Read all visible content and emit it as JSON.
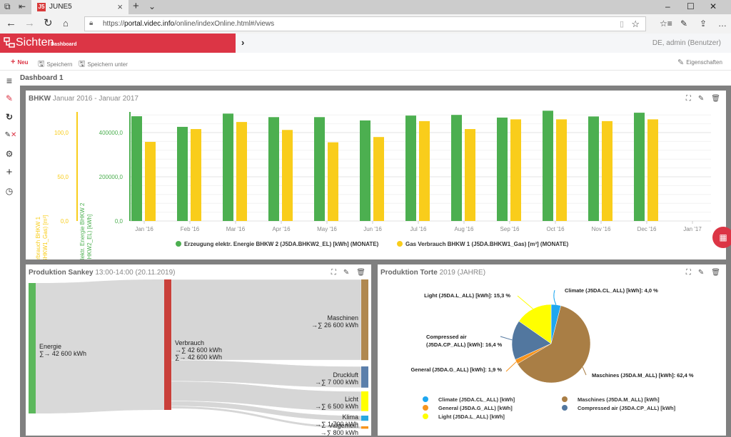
{
  "browser": {
    "tab_title": "JUNE5",
    "tab_logo": "J5",
    "url_prefix": "https://",
    "url_host": "portal.videc.info",
    "url_path": "/online/indexOnline.html#/views",
    "icons": [
      "tab-preview-icon",
      "set-aside-tabs-icon",
      "close-icon",
      "new-tab-icon",
      "tab-list-icon",
      "back-icon",
      "forward-icon",
      "refresh-icon",
      "home-icon",
      "lock-icon",
      "reading-view-icon",
      "favorite-star-icon",
      "favorites-icon",
      "pen-icon",
      "share-icon",
      "more-icon",
      "minimize-icon",
      "maximize-icon",
      "close-window-icon"
    ]
  },
  "app": {
    "brand": "Sichten",
    "brand_sub": "Dashboard",
    "user": "DE,  admin (Benutzer)",
    "accent": "#dc3545"
  },
  "toolbar": {
    "new_label": "Neu",
    "save_label": "Speichern",
    "save_as_label": "Speichern unter",
    "properties_label": "Eigenschaften"
  },
  "sidebar": {
    "items": [
      "menu-icon",
      "edit-dashboard-icon",
      "refresh-icon",
      "edit-remove-icon",
      "settings-icon",
      "add-icon",
      "clock-icon"
    ]
  },
  "dashboard": {
    "title": "Dashboard 1"
  },
  "panels": {
    "bhkw": {
      "title_bold": "BHKW",
      "title_rest": " Januar 2016 - Januar 2017"
    },
    "sankey": {
      "title_bold": "Produktion Sankey",
      "title_rest": " 13:00-14:00 (20.11.2019)"
    },
    "pie": {
      "title_bold": "Produktion Torte",
      "title_rest": " 2019 (JAHRE)"
    }
  },
  "chart_data": [
    {
      "type": "bar",
      "title": "BHKW Januar 2016 - Januar 2017",
      "categories": [
        "Jan '16",
        "Feb '16",
        "Mar '16",
        "Apr '16",
        "May '16",
        "Jun '16",
        "Jul '16",
        "Aug '16",
        "Sep '16",
        "Oct '16",
        "Nov '16",
        "Dec '16",
        "Jan '17"
      ],
      "series": [
        {
          "name": "Erzeugung elektr. Energie BHKW 2 (J5DA.BHKW2_EL) [kWh] (MONATE)",
          "color": "#4caf50",
          "axis": "Erzeugung elektr. Energie BHKW 2 (J5DA.BHKW2_EL) [kWh]",
          "values": [
            474000,
            426000,
            486000,
            470000,
            470000,
            455000,
            477000,
            480000,
            468000,
            499000,
            473000,
            490000,
            null
          ]
        },
        {
          "name": "Gas Verbrauch BHKW 1 (J5DA.BHKW1_Gas) [m³] (MONATE)",
          "color": "#f9cd1b",
          "axis": "Gas Verbrauch BHKW 1 (J5DA.BHKW1_Gas) [m³]",
          "values": [
            89.5,
            104,
            112,
            103,
            89,
            95,
            113,
            104,
            115,
            115,
            113,
            115,
            null
          ]
        }
      ],
      "y_axes": [
        {
          "label": "Gas Verbrauch BHKW 1 (J5DA.BHKW1_Gas) [m³]",
          "ticks": [
            "0,0",
            "50,0",
            "100,0"
          ],
          "range": [
            0,
            130
          ],
          "color": "#f9cd1b"
        },
        {
          "label": "Erzeugung elektr. Energie BHKW 2 (J5DA.BHKW2_EL) [kWh]",
          "ticks": [
            "0,0",
            "200000,0",
            "400000,0"
          ],
          "range": [
            0,
            520000
          ],
          "color": "#4caf50"
        }
      ],
      "grid": true,
      "legend": "bottom"
    },
    {
      "type": "sankey",
      "title": "Produktion Sankey 13:00-14:00 (20.11.2019)",
      "unit": "kWh",
      "nodes": [
        {
          "name": "Energie",
          "label1": "∑→ 42 600 kWh",
          "label2": "",
          "value": 42600,
          "color": "#5cb85c"
        },
        {
          "name": "Verbrauch",
          "label1": "→∑ 42 600 kWh",
          "label2": "∑→ 42 600 kWh",
          "value": 42600,
          "color": "#c9403a"
        },
        {
          "name": "Maschinen",
          "label1": "→∑ 26 600 kWh",
          "value": 26600,
          "color": "#b0884f"
        },
        {
          "name": "Druckluft",
          "label1": "→∑ 7 000 kWh",
          "value": 7000,
          "color": "#5b7fab"
        },
        {
          "name": "Licht",
          "label1": "→∑ 6 500 kWh",
          "value": 6500,
          "color": "#ffff00"
        },
        {
          "name": "Klima",
          "label1": "→∑ 1 700 kWh",
          "value": 1700,
          "color": "#29a8e0"
        },
        {
          "name": "Allgemein",
          "label1": "→∑ 800 kWh",
          "value": 800,
          "color": "#f7941d"
        }
      ],
      "links": [
        {
          "source": "Energie",
          "target": "Verbrauch",
          "value": 42600
        },
        {
          "source": "Verbrauch",
          "target": "Maschinen",
          "value": 26600
        },
        {
          "source": "Verbrauch",
          "target": "Druckluft",
          "value": 7000
        },
        {
          "source": "Verbrauch",
          "target": "Licht",
          "value": 6500
        },
        {
          "source": "Verbrauch",
          "target": "Klima",
          "value": 1700
        },
        {
          "source": "Verbrauch",
          "target": "Allgemein",
          "value": 800
        }
      ]
    },
    {
      "type": "pie",
      "title": "Produktion Torte 2019 (JAHRE)",
      "slices": [
        {
          "label": "Climate (J5DA.CL_ALL) [kWh]",
          "value": 4.0,
          "display": "4,0 %",
          "color": "#1ea7f0"
        },
        {
          "label": "Maschines (J5DA.M_ALL) [kWh]",
          "value": 62.4,
          "display": "62,4 %",
          "color": "#a97e45"
        },
        {
          "label": "General (J5DA.G_ALL) [kWh]",
          "value": 1.9,
          "display": "1,9 %",
          "color": "#f7941d"
        },
        {
          "label": "Compressed air (J5DA.CP_ALL) [kWh]",
          "value": 16.4,
          "display": "16,4 %",
          "color": "#52779f"
        },
        {
          "label": "Light (J5DA.L_ALL) [kWh]",
          "value": 15.3,
          "display": "15,3 %",
          "color": "#ffff00"
        }
      ],
      "legend_order": [
        [
          "Climate (J5DA.CL_ALL) [kWh]",
          "Maschines (J5DA.M_ALL) [kWh]"
        ],
        [
          "General (J5DA.G_ALL) [kWh]",
          "Compressed air (J5DA.CP_ALL) [kWh]"
        ],
        [
          "Light (J5DA.L_ALL) [kWh]",
          ""
        ]
      ],
      "legend": "bottom"
    }
  ]
}
